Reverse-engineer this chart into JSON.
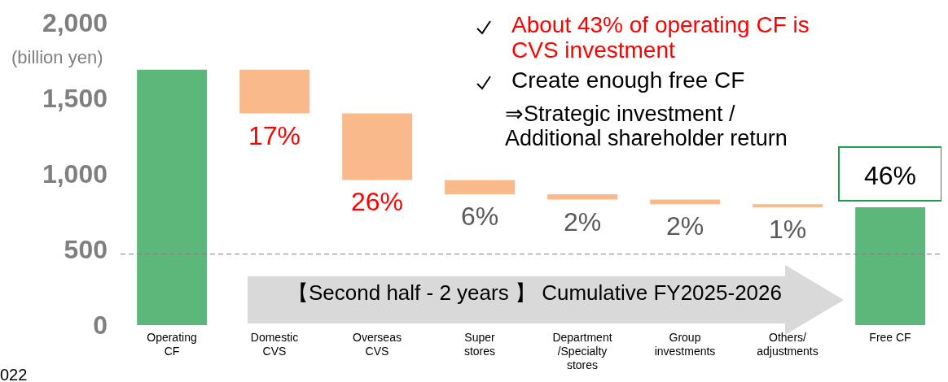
{
  "chart_data": {
    "type": "bar",
    "ylabel": "(billion yen)",
    "categories": [
      "Operating\nCF",
      "Domestic\nCVS",
      "Overseas\nCVS",
      "Super\nstores",
      "Department\n/Specialty\nstores",
      "Group\ninvestments",
      "Others/\nadjustments",
      "Free CF"
    ],
    "base": [
      0,
      1690,
      1400,
      960,
      865,
      830,
      800,
      0
    ],
    "values": [
      1690,
      -290,
      -440,
      -95,
      -35,
      -30,
      -20,
      780
    ],
    "colors": [
      "#5cb87a",
      "#f9b98a",
      "#f9b98a",
      "#f9b98a",
      "#f9b98a",
      "#f9b98a",
      "#f9b98a",
      "#5cb87a"
    ],
    "ylim": [
      0,
      2000
    ],
    "yticks": [
      0,
      {
        "value": 500,
        "label": "500"
      },
      {
        "value": 1000,
        "label": "1,000"
      },
      {
        "value": 1500,
        "label": "1,500"
      },
      {
        "value": 2000,
        "label": "2,000"
      }
    ],
    "grid": false,
    "ref_lines": [
      {
        "axis": "y",
        "value": 470,
        "color": "#7f7f7f",
        "line_style": "dashed"
      }
    ],
    "annotations": [
      "About 43% of operating CF is\nCVS investment",
      "Create enough free CF",
      "⇒Strategic investment /\nAdditional shareholder return",
      "【Second half - 2 years 】 Cumulative FY2025-2026",
      "022",
      {
        "text": "17%",
        "x": "Domestic\nCVS",
        "y": 1400
      },
      {
        "text": "26%",
        "x": "Overseas\nCVS",
        "y": 960
      },
      {
        "text": "6%",
        "x": "Super\nstores",
        "y": 865
      },
      {
        "text": "2%",
        "x": "Department\n/Specialty\nstores",
        "y": 830
      },
      {
        "text": "2%",
        "x": "Group\ninvestments",
        "y": 800
      },
      {
        "text": "1%",
        "x": "Others/\nadjustments",
        "y": 780
      },
      {
        "text": "46%",
        "x": "Free CF",
        "y": 780
      }
    ]
  }
}
